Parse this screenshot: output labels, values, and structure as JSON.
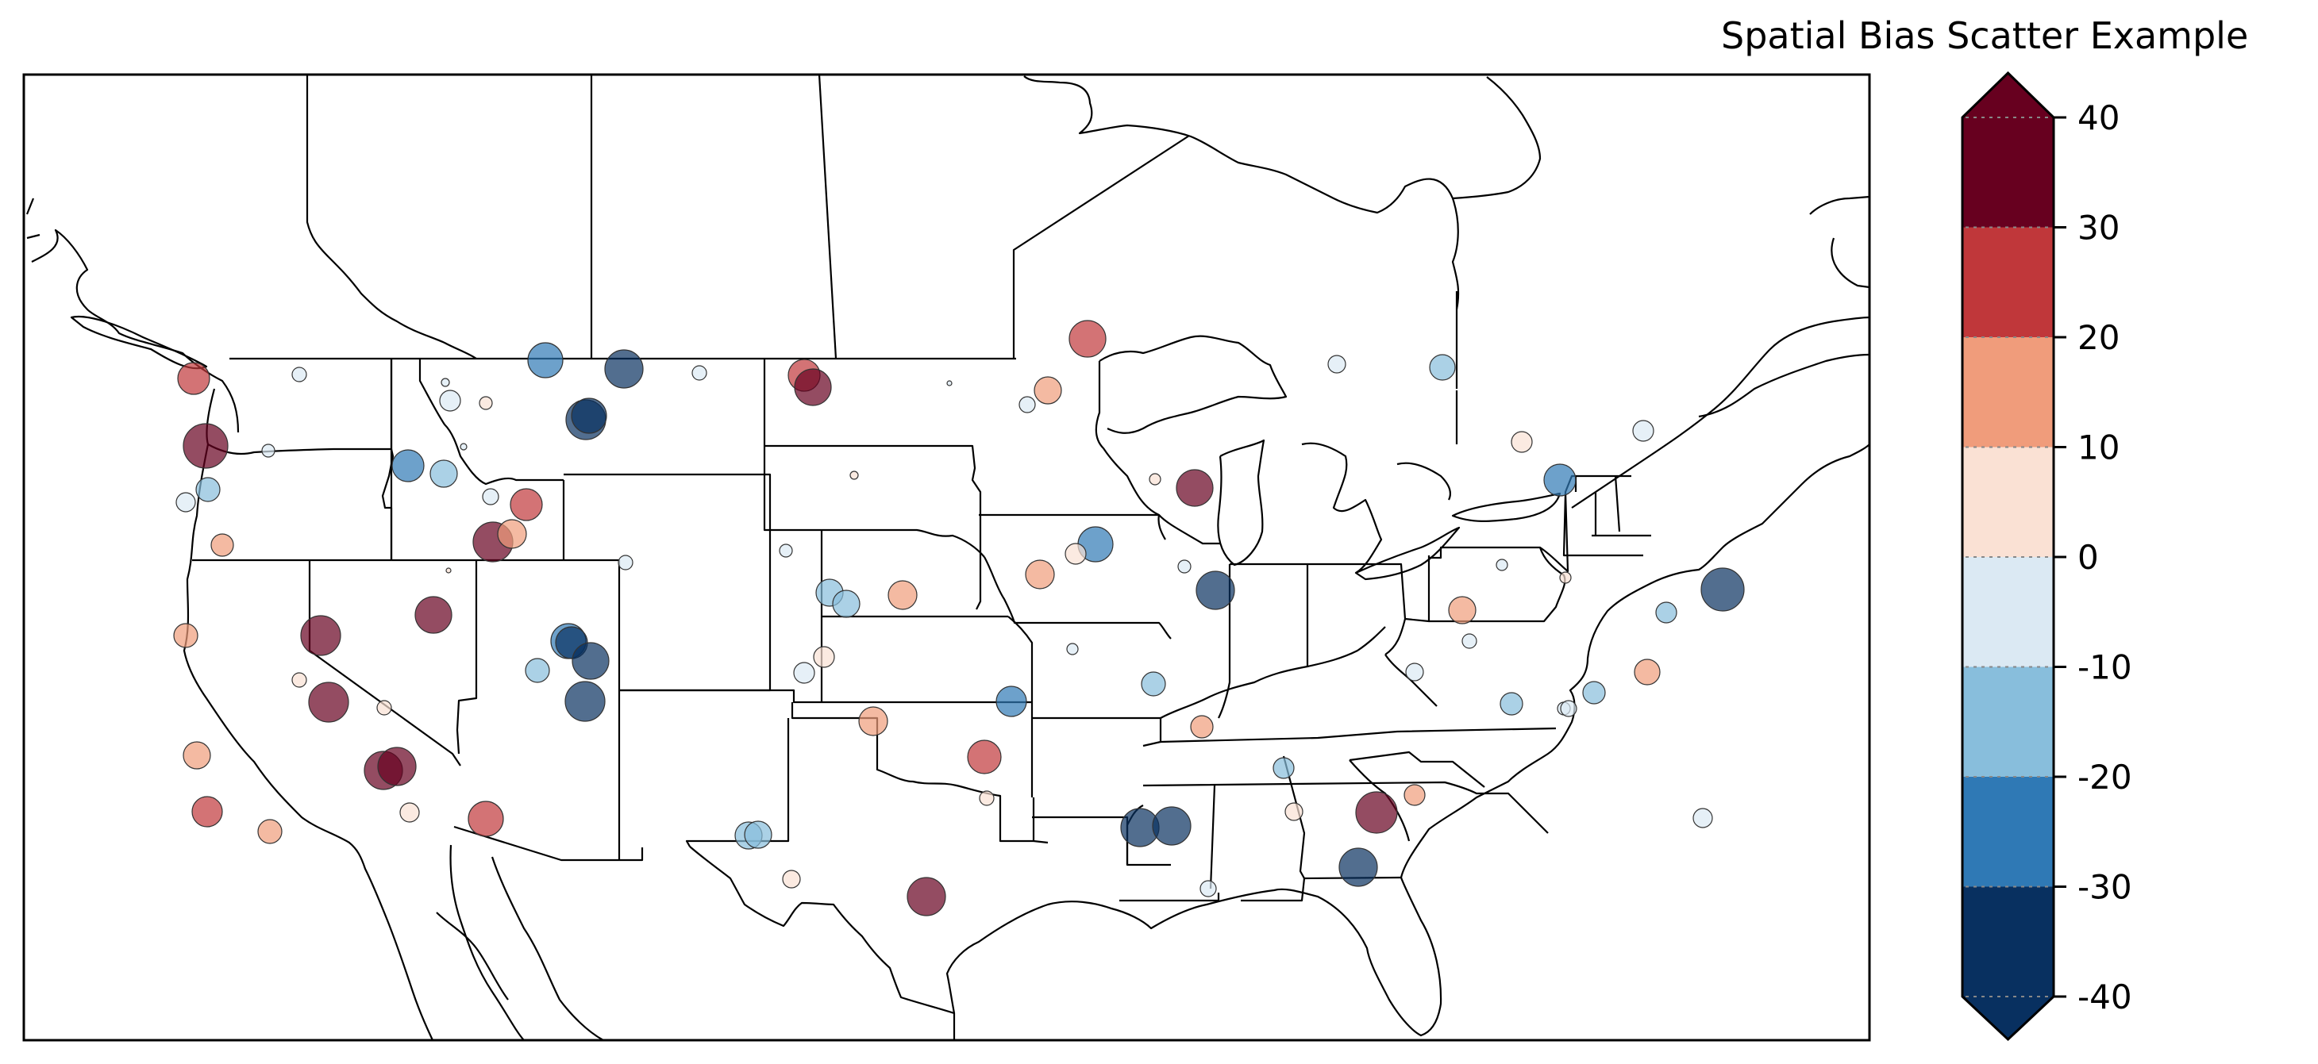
{
  "title": "Spatial Bias Scatter Example",
  "colorbar": {
    "ticks": [
      "40",
      "30",
      "20",
      "10",
      "0",
      "-10",
      "-20",
      "-30",
      "-40"
    ],
    "bins": [
      {
        "range": [
          30,
          40
        ],
        "color": "#67001f"
      },
      {
        "range": [
          20,
          30
        ],
        "color": "#c0373a"
      },
      {
        "range": [
          10,
          20
        ],
        "color": "#f09c7b"
      },
      {
        "range": [
          0,
          10
        ],
        "color": "#fae1d4"
      },
      {
        "range": [
          -10,
          0
        ],
        "color": "#dbe9f3"
      },
      {
        "range": [
          -20,
          -10
        ],
        "color": "#88bedc"
      },
      {
        "range": [
          -30,
          -20
        ],
        "color": "#2f79b5"
      },
      {
        "range": [
          -40,
          -30
        ],
        "color": "#083060"
      }
    ],
    "extend": "both",
    "over_color": "#67001f",
    "under_color": "#083060"
  },
  "chart_data": {
    "type": "scatter",
    "title": "Spatial Bias Scatter Example",
    "xlabel": "",
    "ylabel": "",
    "colorbar_range": [
      -40,
      40
    ],
    "colorbar_ticks": [
      40,
      30,
      20,
      10,
      0,
      -10,
      -20,
      -30,
      -40
    ],
    "map_extent": "Continental United States with southern Canada and northern Mexico",
    "marker_alpha": 0.7,
    "note": "Marker size scales with absolute bias; color by binned bias value. Points given in figure pixel coordinates [x, y, radius_px, bias_bin_center].",
    "points": [
      [
        244,
        477,
        20,
        25
      ],
      [
        377,
        472,
        9,
        -5
      ],
      [
        259,
        562,
        28,
        35
      ],
      [
        338,
        568,
        8,
        -5
      ],
      [
        262,
        617,
        15,
        -15
      ],
      [
        234,
        633,
        12,
        -5
      ],
      [
        280,
        687,
        14,
        15
      ],
      [
        514,
        587,
        20,
        -25
      ],
      [
        559,
        597,
        17,
        -15
      ],
      [
        618,
        626,
        10,
        -5
      ],
      [
        663,
        636,
        20,
        25
      ],
      [
        621,
        683,
        25,
        35
      ],
      [
        645,
        673,
        18,
        15
      ],
      [
        687,
        454,
        22,
        -25
      ],
      [
        786,
        465,
        24,
        -35
      ],
      [
        738,
        529,
        25,
        -35
      ],
      [
        742,
        524,
        22,
        -38
      ],
      [
        561,
        482,
        5,
        -5
      ],
      [
        567,
        505,
        13,
        -5
      ],
      [
        612,
        508,
        8,
        5
      ],
      [
        584,
        563,
        4,
        -5
      ],
      [
        788,
        709,
        9,
        -5
      ],
      [
        565,
        719,
        3,
        5
      ],
      [
        546,
        775,
        23,
        35
      ],
      [
        404,
        801,
        25,
        35
      ],
      [
        234,
        801,
        15,
        15
      ],
      [
        377,
        857,
        9,
        5
      ],
      [
        716,
        808,
        22,
        -25
      ],
      [
        720,
        810,
        20,
        -32
      ],
      [
        744,
        833,
        23,
        -35
      ],
      [
        677,
        845,
        15,
        -15
      ],
      [
        414,
        885,
        25,
        35
      ],
      [
        484,
        892,
        9,
        5
      ],
      [
        248,
        952,
        17,
        15
      ],
      [
        483,
        971,
        24,
        35
      ],
      [
        500,
        966,
        24,
        35
      ],
      [
        261,
        1023,
        19,
        25
      ],
      [
        340,
        1048,
        15,
        15
      ],
      [
        516,
        1024,
        12,
        5
      ],
      [
        612,
        1032,
        22,
        25
      ],
      [
        737,
        884,
        25,
        -35
      ],
      [
        881,
        470,
        9,
        -5
      ],
      [
        1013,
        473,
        20,
        25
      ],
      [
        1024,
        488,
        23,
        35
      ],
      [
        1196,
        483,
        3,
        -5
      ],
      [
        1370,
        427,
        23,
        25
      ],
      [
        1320,
        492,
        17,
        15
      ],
      [
        1294,
        510,
        10,
        -5
      ],
      [
        1076,
        599,
        5,
        5
      ],
      [
        1455,
        604,
        7,
        5
      ],
      [
        1505,
        615,
        23,
        35
      ],
      [
        990,
        694,
        8,
        -5
      ],
      [
        1380,
        686,
        22,
        -25
      ],
      [
        1355,
        698,
        13,
        5
      ],
      [
        1310,
        724,
        18,
        15
      ],
      [
        1492,
        714,
        8,
        -5
      ],
      [
        1531,
        744,
        24,
        -35
      ],
      [
        1045,
        747,
        17,
        -15
      ],
      [
        1066,
        761,
        17,
        -15
      ],
      [
        1137,
        750,
        18,
        15
      ],
      [
        1038,
        828,
        13,
        5
      ],
      [
        1013,
        848,
        13,
        -5
      ],
      [
        1351,
        818,
        7,
        -5
      ],
      [
        1453,
        862,
        15,
        -15
      ],
      [
        1274,
        884,
        19,
        -25
      ],
      [
        1100,
        909,
        18,
        15
      ],
      [
        1240,
        954,
        21,
        25
      ],
      [
        1243,
        1006,
        9,
        5
      ],
      [
        943,
        1053,
        17,
        -15
      ],
      [
        955,
        1052,
        17,
        -15
      ],
      [
        997,
        1108,
        11,
        5
      ],
      [
        1167,
        1130,
        24,
        35
      ],
      [
        1514,
        916,
        14,
        15
      ],
      [
        1617,
        968,
        13,
        -15
      ],
      [
        1630,
        1023,
        11,
        5
      ],
      [
        1436,
        1043,
        24,
        -35
      ],
      [
        1476,
        1041,
        24,
        -35
      ],
      [
        1522,
        1120,
        10,
        -5
      ],
      [
        1734,
        1024,
        26,
        35
      ],
      [
        1711,
        1093,
        24,
        -35
      ],
      [
        1782,
        1002,
        13,
        15
      ],
      [
        1684,
        459,
        11,
        -5
      ],
      [
        1817,
        463,
        16,
        -15
      ],
      [
        1917,
        557,
        13,
        5
      ],
      [
        2070,
        543,
        13,
        -5
      ],
      [
        1965,
        605,
        20,
        -25
      ],
      [
        1892,
        712,
        7,
        -5
      ],
      [
        1972,
        728,
        7,
        5
      ],
      [
        1842,
        769,
        17,
        15
      ],
      [
        1851,
        808,
        9,
        -5
      ],
      [
        1782,
        847,
        11,
        -5
      ],
      [
        2170,
        743,
        27,
        -35
      ],
      [
        2099,
        772,
        13,
        -15
      ],
      [
        2075,
        847,
        16,
        15
      ],
      [
        2008,
        873,
        14,
        -15
      ],
      [
        1904,
        887,
        14,
        -15
      ],
      [
        1970,
        893,
        8,
        -5
      ],
      [
        1976,
        893,
        10,
        -5
      ],
      [
        2145,
        1031,
        12,
        -5
      ]
    ]
  }
}
